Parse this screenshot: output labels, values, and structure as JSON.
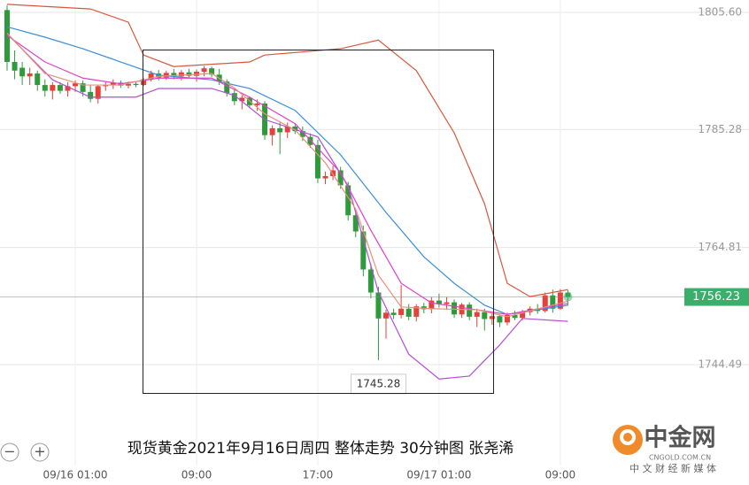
{
  "chart_data": {
    "type": "candlestick",
    "title": "现货黄金2021年9月16日周四 整体走势 30分钟图 张尧浠",
    "categories": [
      null,
      null,
      null,
      null,
      null,
      null,
      null,
      null,
      null,
      "09/16 01:00",
      null,
      null,
      null,
      null,
      null,
      null,
      null,
      null,
      null,
      null,
      null,
      null,
      null,
      null,
      null,
      "09:00",
      null,
      null,
      null,
      null,
      null,
      null,
      null,
      null,
      null,
      null,
      null,
      null,
      null,
      null,
      null,
      "17:00",
      null,
      null,
      null,
      null,
      null,
      null,
      null,
      null,
      null,
      null,
      null,
      null,
      null,
      null,
      null,
      "09/17 01:00",
      null,
      null,
      null,
      null,
      null,
      null,
      null,
      null,
      null,
      null,
      null,
      null,
      null,
      null,
      null,
      "09:00",
      null
    ],
    "open": [
      1806,
      1797,
      1796,
      1794.5,
      1795,
      1793,
      1792,
      1793,
      1792,
      1792.8,
      1793.3,
      1791.8,
      1790.6,
      1792.8,
      1793,
      1793.4,
      1792.9,
      1793.2,
      1793,
      1794,
      1795,
      1794.3,
      1795.1,
      1794.5,
      1795.2,
      1794.6,
      1795.3,
      1795.9,
      1794.8,
      1793.6,
      1791.6,
      1790.2,
      1790.8,
      1789.5,
      1789.8,
      1784.3,
      1785.5,
      1784.8,
      1785.8,
      1785,
      1784,
      1782.6,
      1776.8,
      1777.2,
      1778.2,
      1775.6,
      1770.4,
      1767.6,
      1761,
      1757,
      1752.5,
      1753.5,
      1753.1,
      1754.2,
      1752.8,
      1754.6,
      1754.1,
      1755.6,
      1755,
      1755.3,
      1753.2,
      1754.9,
      1752.8,
      1753.6,
      1752.4,
      1752.9,
      1751.8,
      1753.1,
      1752.6,
      1753.6,
      1754.2,
      1753.8,
      1756.5,
      1754.2,
      1757
    ],
    "high": [
      1806.8,
      1799,
      1797,
      1796,
      1795.5,
      1794,
      1793.5,
      1793.5,
      1793.5,
      1793.8,
      1793.8,
      1793,
      1793,
      1793.5,
      1794,
      1793.8,
      1793.6,
      1793.5,
      1794.2,
      1795.5,
      1795.6,
      1795.5,
      1795.8,
      1795.6,
      1795.8,
      1795.7,
      1796.3,
      1796.2,
      1795.8,
      1794,
      1792.3,
      1791.2,
      1791,
      1790.5,
      1790.2,
      1786,
      1786.5,
      1786.5,
      1786.3,
      1785.8,
      1784.6,
      1783.5,
      1778,
      1779,
      1778.8,
      1776.2,
      1771,
      1768.6,
      1762,
      1758,
      1754,
      1754.2,
      1758.3,
      1755,
      1755,
      1755.2,
      1756.2,
      1756.8,
      1756.2,
      1755.8,
      1755.2,
      1755.3,
      1754.2,
      1754.2,
      1753.4,
      1753.2,
      1753.5,
      1753.8,
      1754,
      1754.6,
      1755,
      1757,
      1757.5,
      1757.6,
      1757.4
    ],
    "low": [
      1795.5,
      1794,
      1793,
      1793,
      1792,
      1791,
      1790.5,
      1791.5,
      1791,
      1791.8,
      1791,
      1790,
      1789.8,
      1792,
      1792.3,
      1792.5,
      1792.4,
      1792.6,
      1792.8,
      1793.6,
      1793.8,
      1793.9,
      1794,
      1793.8,
      1794.2,
      1793.6,
      1794.5,
      1794.4,
      1793,
      1791,
      1789.5,
      1788.8,
      1789,
      1788.5,
      1783.5,
      1782.5,
      1781,
      1783.8,
      1784.5,
      1783.3,
      1782.1,
      1776,
      1775.8,
      1776.5,
      1775,
      1769.5,
      1766.6,
      1759.8,
      1756,
      1745.28,
      1749,
      1752.4,
      1752.5,
      1752.2,
      1752,
      1753.4,
      1753.4,
      1754.4,
      1754,
      1752.6,
      1752.6,
      1752.2,
      1751,
      1750.4,
      1751.4,
      1751,
      1751.3,
      1752.2,
      1752.2,
      1753,
      1753.3,
      1753.5,
      1753.5,
      1754,
      1754.8
    ],
    "close": [
      1797,
      1795.5,
      1794.5,
      1795,
      1793,
      1792,
      1793,
      1792,
      1792.8,
      1793.3,
      1791.8,
      1790.6,
      1792.8,
      1793,
      1793.4,
      1792.9,
      1793.2,
      1793,
      1794,
      1795,
      1794.3,
      1795.1,
      1794.5,
      1795.2,
      1794.6,
      1795.3,
      1795.9,
      1794.8,
      1793.6,
      1791.6,
      1790.2,
      1790.8,
      1789.5,
      1789.8,
      1784.3,
      1785.5,
      1784.8,
      1785.8,
      1785,
      1784,
      1782.6,
      1776.8,
      1777.2,
      1778.2,
      1775.6,
      1770.4,
      1767.6,
      1761,
      1757,
      1752.5,
      1753.5,
      1753.1,
      1754.2,
      1752.8,
      1754.6,
      1754.1,
      1755.6,
      1755,
      1755.3,
      1753.2,
      1754.9,
      1752.8,
      1753.6,
      1752.4,
      1752.9,
      1751.8,
      1753.1,
      1752.6,
      1753.6,
      1754.2,
      1753.8,
      1756.5,
      1754.2,
      1757,
      1756.23
    ],
    "up_color": "#e5403a",
    "down_color": "#2f9a3c",
    "last_price_color": "#3aae6b",
    "lines": [
      {
        "color": "#d8573c",
        "x": [
          0,
          11,
          16,
          18,
          22,
          32,
          34,
          44,
          49,
          54,
          59,
          63,
          66,
          69,
          74
        ],
        "values": [
          1807,
          1806.2,
          1803.9,
          1798.2,
          1796.2,
          1797,
          1798.2,
          1799.3,
          1800.8,
          1795.5,
          1784.7,
          1772.4,
          1758.6,
          1756.3,
          1757.5
        ]
      },
      {
        "color": "#b04fd6",
        "x": [
          0,
          6,
          11,
          17,
          20,
          27,
          30,
          34,
          41,
          45,
          49,
          53,
          57,
          61,
          65,
          68,
          74
        ],
        "values": [
          1801.9,
          1793.9,
          1790.9,
          1790.9,
          1792.4,
          1792.4,
          1791.2,
          1787,
          1784,
          1775.5,
          1757.1,
          1746.3,
          1742,
          1742.5,
          1747.9,
          1752.5,
          1752
        ]
      },
      {
        "color": "#3a8fd8",
        "x": [
          0,
          5,
          10,
          15,
          20,
          27,
          32,
          38,
          44,
          50,
          55,
          59,
          63,
          66,
          74
        ],
        "values": [
          1803.1,
          1801.3,
          1799.3,
          1797,
          1794.7,
          1793.9,
          1792.4,
          1788.6,
          1780.9,
          1770.9,
          1763.2,
          1758.6,
          1754.8,
          1753.2,
          1754.8
        ]
      },
      {
        "color": "#e040c8",
        "x": [
          0,
          5,
          10,
          15,
          20,
          27,
          32,
          38,
          44,
          48,
          52,
          56,
          62,
          66,
          74
        ],
        "values": [
          1801.6,
          1797,
          1794.2,
          1793.2,
          1794.2,
          1794.2,
          1790.9,
          1786.3,
          1777.8,
          1767.8,
          1758.6,
          1755.2,
          1754,
          1753.2,
          1755.1
        ]
      },
      {
        "color": "#e8907a",
        "x": [
          0,
          5,
          10,
          15,
          20,
          27,
          30,
          34,
          38,
          42,
          46,
          49,
          52,
          56,
          62,
          66,
          74
        ],
        "values": [
          1802,
          1795,
          1793,
          1793,
          1794.5,
          1795,
          1792.5,
          1788,
          1785.2,
          1779.5,
          1771.5,
          1760,
          1754.5,
          1754.2,
          1754,
          1752.8,
          1755.5
        ]
      }
    ],
    "ylim": [
      1727.14,
      1807.75
    ],
    "yticks": [
      {
        "value": 1805.6,
        "label": "1805.60"
      },
      1785.28,
      1764.81,
      1744.49
    ],
    "grid": true
  },
  "controls": [
    "−",
    "+"
  ],
  "logo": {
    "name": "中金网",
    "domain": "CNGOLD.COM.CN",
    "slogan": "中 文 财 经 新 媒 体"
  }
}
